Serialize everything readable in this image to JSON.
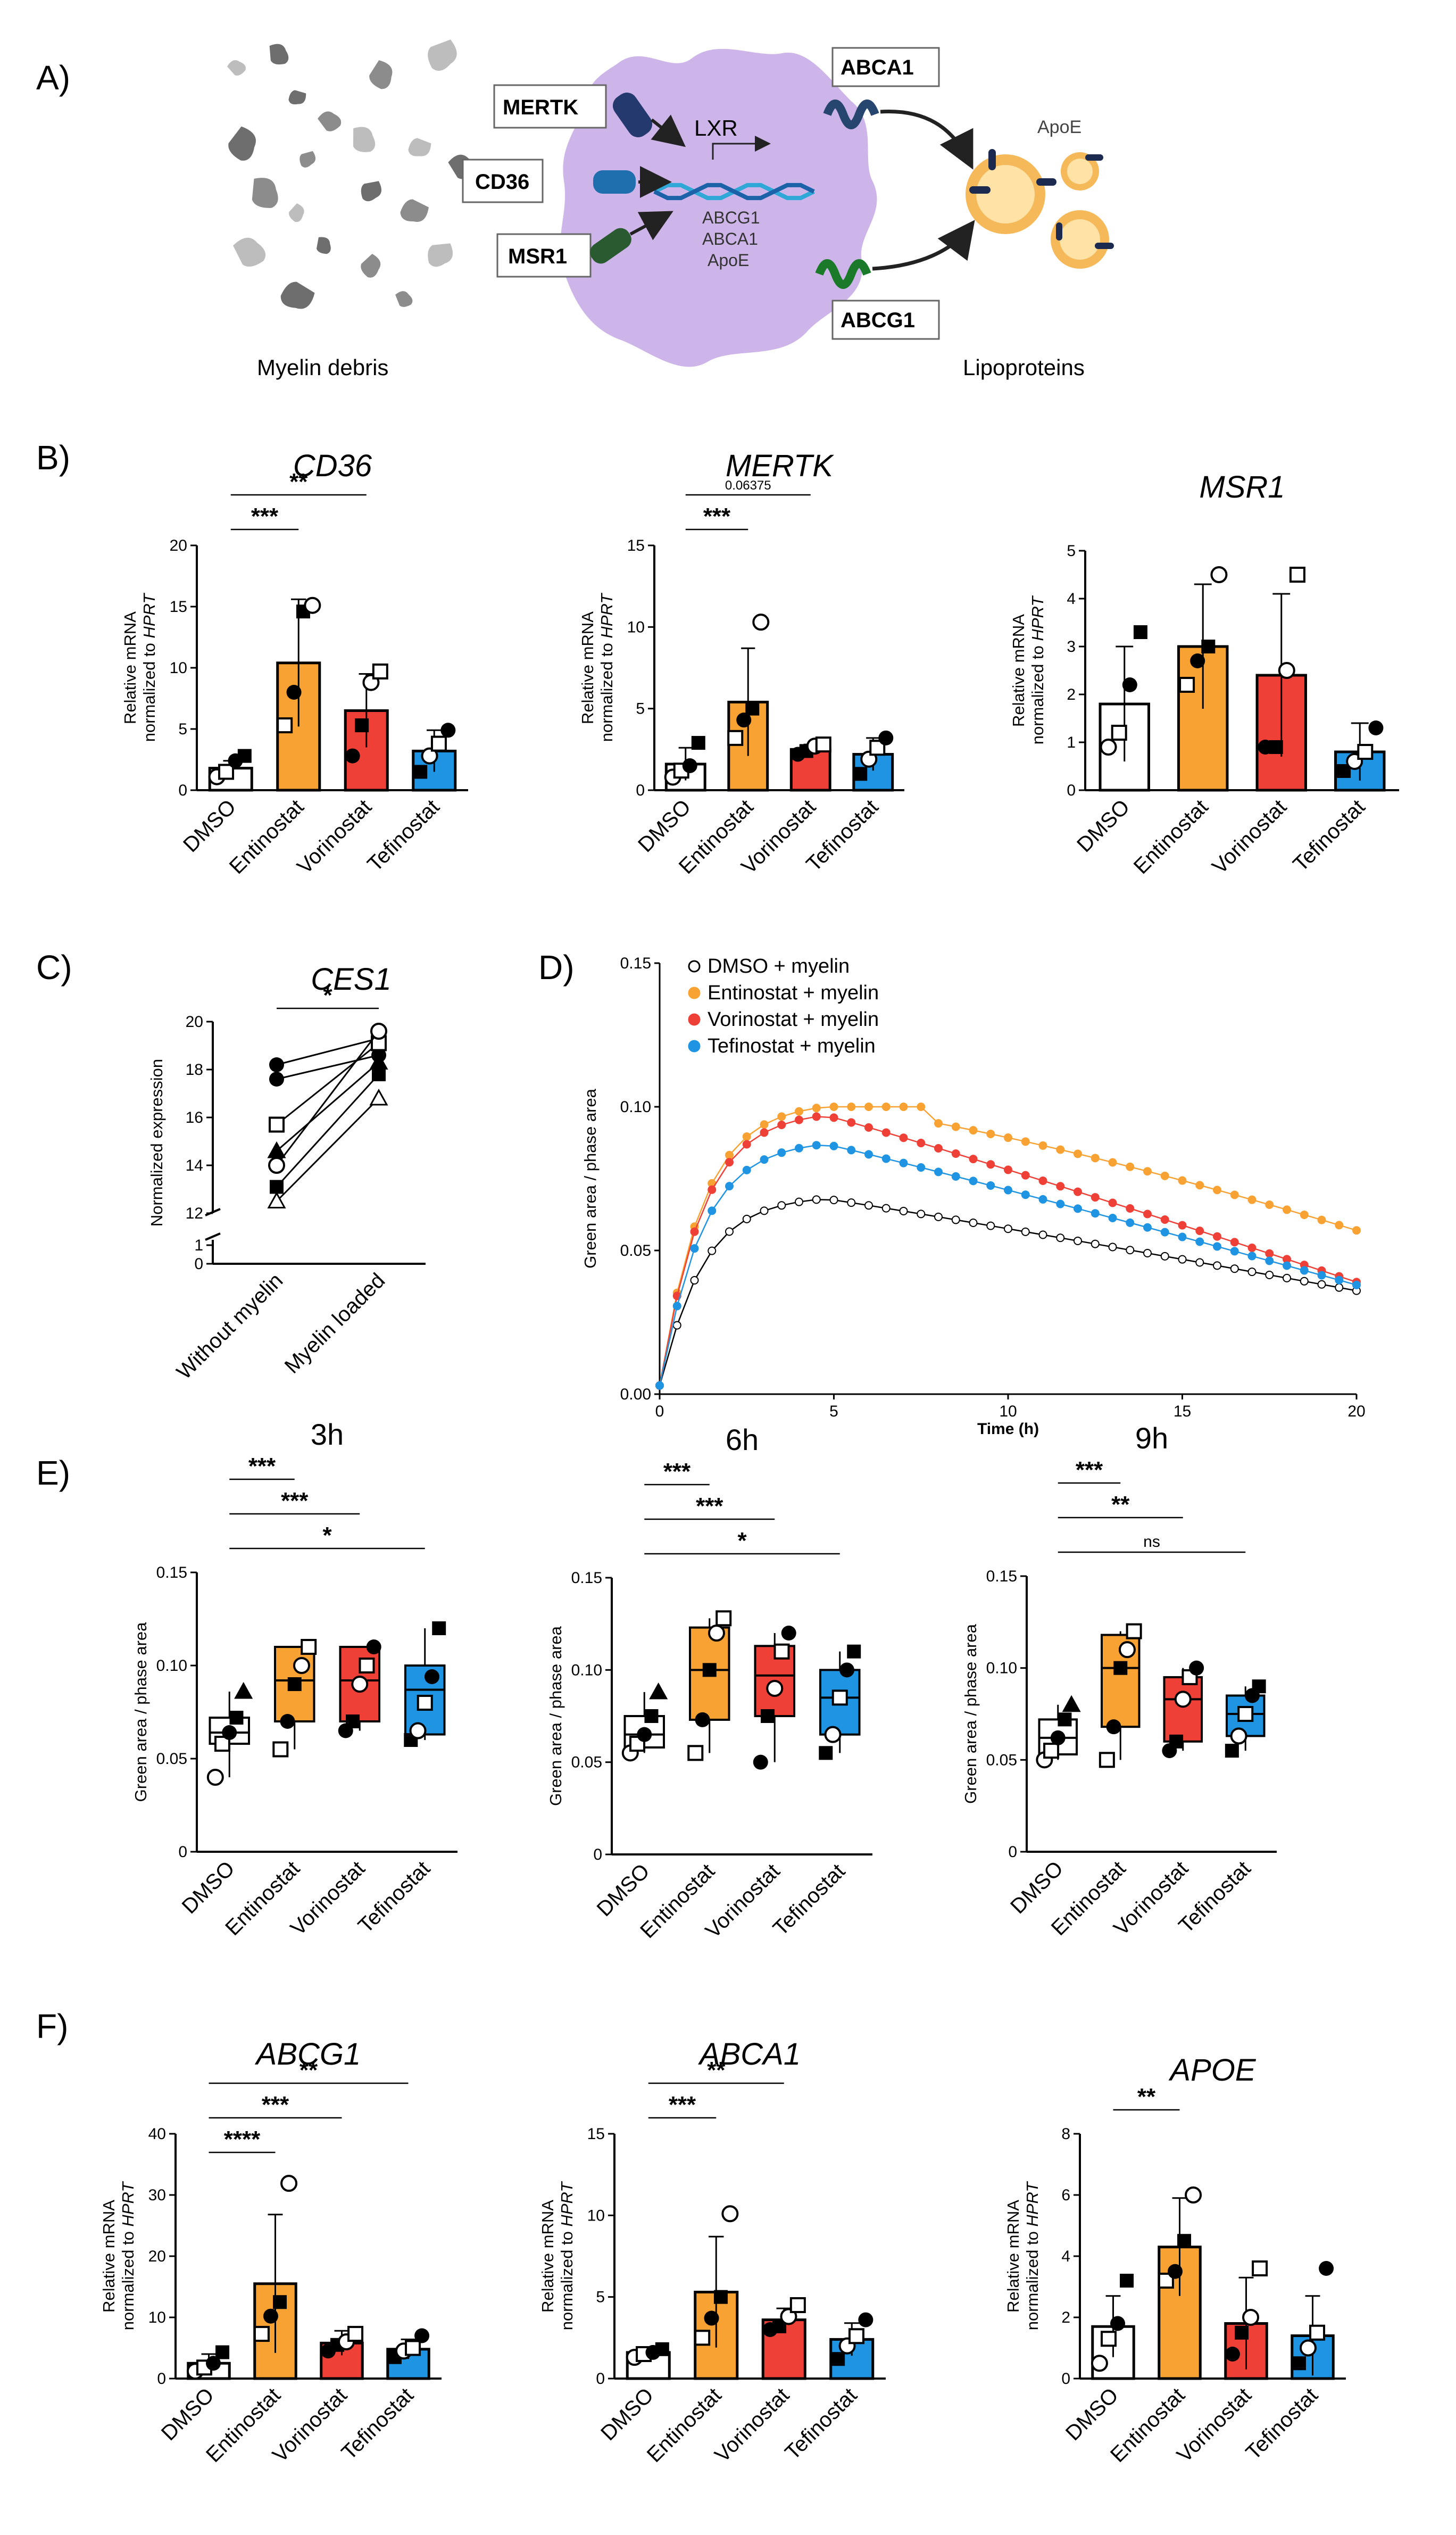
{
  "panels": {
    "A": "A)",
    "B": "B)",
    "C": "C)",
    "D": "D)",
    "E": "E)",
    "F": "F)"
  },
  "diagram": {
    "receptors": [
      "MERTK",
      "CD36",
      "MSR1"
    ],
    "exporters": [
      "ABCA1",
      "ABCG1"
    ],
    "lxr": "LXR",
    "targets": [
      "ABCG1",
      "ABCA1",
      "ApoE"
    ],
    "apoe_label": "ApoE",
    "left_caption": "Myelin debris",
    "right_caption": "Lipoproteins",
    "colors": {
      "cell": "#cdb5ea",
      "debris": "#7a7a7a",
      "lipoprotein": "#f6b95a",
      "lipoprotein_core": "#ffe2a6",
      "dna1": "#2fa8d8",
      "dna2": "#1b62a8"
    }
  },
  "colors": {
    "DMSO": "#ffffff",
    "Entinostat": "#f7a233",
    "Vorinostat": "#ee4036",
    "Tefinostat": "#1f94e2"
  },
  "categories": [
    "DMSO",
    "Entinostat",
    "Vorinostat",
    "Tefinostat"
  ],
  "chart_data": [
    {
      "id": "B_CD36",
      "type": "bar",
      "title": "CD36",
      "ylabel": [
        "Relative mRNA",
        "normalized to HPRT"
      ],
      "ylim": [
        0,
        20
      ],
      "yticks": [
        0,
        5,
        10,
        15,
        20
      ],
      "categories": [
        "DMSO",
        "Entinostat",
        "Vorinostat",
        "Tefinostat"
      ],
      "values": [
        1.8,
        10.4,
        6.5,
        3.2
      ],
      "errors": [
        0.6,
        5.2,
        3.0,
        1.7
      ],
      "points": [
        [
          1.1,
          1.5,
          2.4,
          2.8
        ],
        [
          5.3,
          8.0,
          14.6,
          15.1
        ],
        [
          2.8,
          5.3,
          8.8,
          9.7
        ],
        [
          1.5,
          2.8,
          3.8,
          4.9
        ]
      ],
      "significance": [
        {
          "pair": [
            0,
            2
          ],
          "label": "**"
        },
        {
          "pair": [
            0,
            1
          ],
          "label": "***"
        }
      ]
    },
    {
      "id": "B_MERTK",
      "type": "bar",
      "title": "MERTK",
      "ylabel": [
        "Relative mRNA",
        "normalized to HPRT"
      ],
      "ylim": [
        0,
        15
      ],
      "yticks": [
        0,
        5,
        10,
        15
      ],
      "categories": [
        "DMSO",
        "Entinostat",
        "Vorinostat",
        "Tefinostat"
      ],
      "values": [
        1.6,
        5.4,
        2.5,
        2.2
      ],
      "errors": [
        1.0,
        3.3,
        0.3,
        1.0
      ],
      "points": [
        [
          0.8,
          1.2,
          1.5,
          2.9
        ],
        [
          3.2,
          4.3,
          5.0,
          10.3
        ],
        [
          2.2,
          2.4,
          2.7,
          2.8
        ],
        [
          1.0,
          1.9,
          2.6,
          3.2
        ]
      ],
      "significance": [
        {
          "pair": [
            0,
            2
          ],
          "label": "0.06375"
        },
        {
          "pair": [
            0,
            1
          ],
          "label": "***"
        }
      ]
    },
    {
      "id": "B_MSR1",
      "type": "bar",
      "title": "MSR1",
      "ylabel": [
        "Relative mRNA",
        "normalized to HPRT"
      ],
      "ylim": [
        0,
        5
      ],
      "yticks": [
        0,
        1,
        2,
        3,
        4,
        5
      ],
      "categories": [
        "DMSO",
        "Entinostat",
        "Vorinostat",
        "Tefinostat"
      ],
      "values": [
        1.8,
        3.0,
        2.4,
        0.8
      ],
      "errors": [
        1.2,
        1.3,
        1.7,
        0.6
      ],
      "points": [
        [
          0.9,
          1.2,
          2.2,
          3.3
        ],
        [
          2.2,
          2.7,
          3.0,
          4.5
        ],
        [
          0.9,
          0.9,
          2.5,
          4.5
        ],
        [
          0.4,
          0.6,
          0.8,
          1.3
        ]
      ],
      "significance": []
    },
    {
      "id": "C_CES1",
      "type": "line",
      "title": "CES1",
      "ylabel": "Normalized expression",
      "yticks": [
        0,
        1,
        12,
        14,
        16,
        18,
        20
      ],
      "categories": [
        "Without myelin",
        "Myelin loaded"
      ],
      "pairs": [
        [
          18.2,
          19.3
        ],
        [
          17.6,
          18.6
        ],
        [
          15.7,
          19.1
        ],
        [
          14.0,
          19.6
        ],
        [
          14.6,
          18.3
        ],
        [
          13.1,
          17.8
        ],
        [
          12.5,
          16.8
        ]
      ],
      "significance": [
        {
          "pair": [
            0,
            1
          ],
          "label": "*"
        }
      ]
    },
    {
      "id": "D_timecourse",
      "type": "line",
      "xlabel": "Time (h)",
      "ylabel": "Green area / phase area",
      "xlim": [
        0,
        20
      ],
      "ylim": [
        0,
        0.15
      ],
      "xticks": [
        0,
        5,
        10,
        15,
        20
      ],
      "yticks": [
        0.0,
        0.05,
        0.1,
        0.15
      ],
      "legend_position": "top-left",
      "series": [
        {
          "name": "DMSO + myelin",
          "key": "DMSO",
          "peak": 0.068,
          "end": 0.036
        },
        {
          "name": "Entinostat + myelin",
          "key": "Entinostat",
          "peak": 0.1,
          "end": 0.057
        },
        {
          "name": "Vorinostat + myelin",
          "key": "Vorinostat",
          "peak": 0.097,
          "end": 0.039
        },
        {
          "name": "Tefinostat  + myelin",
          "key": "Tefinostat",
          "peak": 0.087,
          "end": 0.038
        }
      ]
    },
    {
      "id": "E_3h",
      "type": "box",
      "title": "3h",
      "ylabel": "Green area / phase area",
      "ylim": [
        0,
        0.15
      ],
      "yticks": [
        0.0,
        0.05,
        0.1,
        0.15
      ],
      "categories": [
        "DMSO",
        "Entinostat",
        "Vorinostat",
        "Tefinostat"
      ],
      "stats": [
        [
          0.04,
          0.058,
          0.064,
          0.072,
          0.086
        ],
        [
          0.055,
          0.07,
          0.092,
          0.11,
          0.11
        ],
        [
          0.065,
          0.07,
          0.092,
          0.11,
          0.11
        ],
        [
          0.06,
          0.063,
          0.087,
          0.1,
          0.12
        ]
      ],
      "points": [
        [
          0.04,
          0.058,
          0.064,
          0.072,
          0.086
        ],
        [
          0.055,
          0.07,
          0.09,
          0.1,
          0.11
        ],
        [
          0.065,
          0.07,
          0.09,
          0.1,
          0.11
        ],
        [
          0.06,
          0.065,
          0.08,
          0.094,
          0.12
        ]
      ],
      "significance": [
        {
          "pair": [
            0,
            3
          ],
          "label": "*"
        },
        {
          "pair": [
            0,
            2
          ],
          "label": "***"
        },
        {
          "pair": [
            0,
            1
          ],
          "label": "***"
        }
      ]
    },
    {
      "id": "E_6h",
      "type": "box",
      "title": "6h",
      "ylabel": "Green area / phase area",
      "ylim": [
        0,
        0.15
      ],
      "yticks": [
        0.0,
        0.05,
        0.1,
        0.15
      ],
      "categories": [
        "DMSO",
        "Entinostat",
        "Vorinostat",
        "Tefinostat"
      ],
      "stats": [
        [
          0.055,
          0.058,
          0.065,
          0.075,
          0.088
        ],
        [
          0.055,
          0.073,
          0.1,
          0.123,
          0.128
        ],
        [
          0.05,
          0.075,
          0.097,
          0.113,
          0.12
        ],
        [
          0.055,
          0.065,
          0.085,
          0.1,
          0.11
        ]
      ],
      "points": [
        [
          0.055,
          0.06,
          0.065,
          0.075,
          0.088
        ],
        [
          0.055,
          0.073,
          0.1,
          0.12,
          0.128
        ],
        [
          0.05,
          0.075,
          0.09,
          0.11,
          0.12
        ],
        [
          0.055,
          0.065,
          0.085,
          0.1,
          0.11
        ]
      ],
      "significance": [
        {
          "pair": [
            0,
            3
          ],
          "label": "*"
        },
        {
          "pair": [
            0,
            2
          ],
          "label": "***"
        },
        {
          "pair": [
            0,
            1
          ],
          "label": "***"
        }
      ]
    },
    {
      "id": "E_9h",
      "type": "box",
      "title": "9h",
      "ylabel": "Green area / phase area",
      "ylim": [
        0,
        0.15
      ],
      "yticks": [
        0.0,
        0.05,
        0.1,
        0.15
      ],
      "categories": [
        "DMSO",
        "Entinostat",
        "Vorinostat",
        "Tefinostat"
      ],
      "stats": [
        [
          0.05,
          0.053,
          0.062,
          0.072,
          0.08
        ],
        [
          0.05,
          0.068,
          0.1,
          0.118,
          0.12
        ],
        [
          0.055,
          0.06,
          0.083,
          0.095,
          0.1
        ],
        [
          0.055,
          0.063,
          0.075,
          0.085,
          0.09
        ]
      ],
      "points": [
        [
          0.05,
          0.055,
          0.062,
          0.072,
          0.08
        ],
        [
          0.05,
          0.068,
          0.1,
          0.11,
          0.12
        ],
        [
          0.055,
          0.06,
          0.083,
          0.095,
          0.1
        ],
        [
          0.055,
          0.063,
          0.075,
          0.085,
          0.09
        ]
      ],
      "significance": [
        {
          "pair": [
            0,
            3
          ],
          "label": "ns"
        },
        {
          "pair": [
            0,
            2
          ],
          "label": "**"
        },
        {
          "pair": [
            0,
            1
          ],
          "label": "***"
        }
      ]
    },
    {
      "id": "F_ABCG1",
      "type": "bar",
      "title": "ABCG1",
      "ylabel": [
        "Relative mRNA",
        "normalized to HPRT"
      ],
      "ylim": [
        0,
        40
      ],
      "yticks": [
        0,
        10,
        20,
        30,
        40
      ],
      "categories": [
        "DMSO",
        "Entinostat",
        "Vorinostat",
        "Tefinostat"
      ],
      "values": [
        2.5,
        15.5,
        5.8,
        4.8
      ],
      "errors": [
        1.5,
        11.3,
        2.0,
        1.6
      ],
      "points": [
        [
          1.2,
          1.8,
          2.5,
          4.3
        ],
        [
          7.3,
          10.2,
          12.5,
          31.9
        ],
        [
          4.5,
          5.5,
          6.0,
          7.3
        ],
        [
          3.5,
          4.5,
          5.0,
          7.0
        ]
      ],
      "significance": [
        {
          "pair": [
            0,
            3
          ],
          "label": "**"
        },
        {
          "pair": [
            0,
            2
          ],
          "label": "***"
        },
        {
          "pair": [
            0,
            1
          ],
          "label": "****"
        }
      ]
    },
    {
      "id": "F_ABCA1",
      "type": "bar",
      "title": "ABCA1",
      "ylabel": [
        "Relative mRNA",
        "normalized to HPRT"
      ],
      "ylim": [
        0,
        15
      ],
      "yticks": [
        0,
        5,
        10,
        15
      ],
      "categories": [
        "DMSO",
        "Entinostat",
        "Vorinostat",
        "Tefinostat"
      ],
      "values": [
        1.6,
        5.3,
        3.6,
        2.4
      ],
      "errors": [
        0.3,
        3.4,
        0.7,
        1.0
      ],
      "points": [
        [
          1.3,
          1.5,
          1.6,
          1.8
        ],
        [
          2.5,
          3.7,
          5.0,
          10.1
        ],
        [
          3.0,
          3.2,
          3.8,
          4.5
        ],
        [
          1.2,
          2.0,
          2.6,
          3.6
        ]
      ],
      "significance": [
        {
          "pair": [
            0,
            2
          ],
          "label": "**"
        },
        {
          "pair": [
            0,
            1
          ],
          "label": "***"
        }
      ]
    },
    {
      "id": "F_APOE",
      "type": "bar",
      "title": "APOE",
      "ylabel": [
        "Relative mRNA",
        "normalized to HPRT"
      ],
      "ylim": [
        0,
        8
      ],
      "yticks": [
        0,
        2,
        4,
        6,
        8
      ],
      "categories": [
        "DMSO",
        "Entinostat",
        "Vorinostat",
        "Tefinostat"
      ],
      "values": [
        1.7,
        4.3,
        1.8,
        1.4
      ],
      "errors": [
        1.0,
        1.6,
        1.5,
        1.3
      ],
      "points": [
        [
          0.5,
          1.3,
          1.8,
          3.2
        ],
        [
          3.2,
          3.5,
          4.5,
          6.0
        ],
        [
          0.8,
          1.5,
          2.0,
          3.6
        ],
        [
          0.5,
          1.0,
          1.5,
          3.6
        ]
      ],
      "significance": [
        {
          "pair": [
            0,
            1
          ],
          "label": "**"
        }
      ]
    }
  ]
}
